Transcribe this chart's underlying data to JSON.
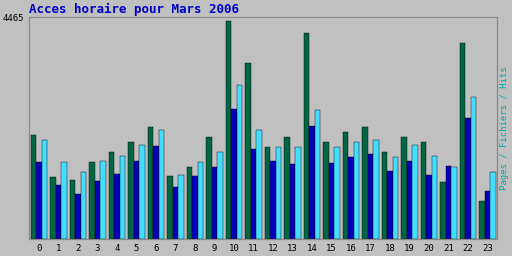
{
  "title": "Acces horaire pour Mars 2006",
  "ylabel": "Pages / Fichiers / Hits",
  "xlabel_ticks": [
    0,
    1,
    2,
    3,
    4,
    5,
    6,
    7,
    8,
    9,
    10,
    11,
    12,
    13,
    14,
    15,
    16,
    17,
    18,
    19,
    20,
    21,
    22,
    23
  ],
  "ymax": 4465,
  "ytick_label": "4465",
  "colors": {
    "green": "#006644",
    "blue": "#0000BB",
    "cyan": "#44DDFF"
  },
  "background_color": "#C0C0C0",
  "title_color": "#0000CC",
  "ylabel_color": "#00AAAA",
  "pages": [
    2100,
    1250,
    1200,
    1550,
    1750,
    1950,
    2250,
    1280,
    1450,
    2050,
    4380,
    3550,
    1850,
    2050,
    4150,
    1950,
    2150,
    2250,
    1750,
    2050,
    1950,
    1150,
    3950,
    780
  ],
  "fichiers": [
    1550,
    1100,
    920,
    1170,
    1320,
    1580,
    1870,
    1060,
    1270,
    1460,
    2620,
    1820,
    1570,
    1520,
    2270,
    1530,
    1650,
    1720,
    1380,
    1580,
    1290,
    1480,
    2430,
    980
  ],
  "hits": [
    2000,
    1550,
    1350,
    1580,
    1680,
    1900,
    2200,
    1300,
    1560,
    1750,
    3100,
    2200,
    1850,
    1850,
    2600,
    1850,
    1960,
    2000,
    1650,
    1900,
    1680,
    1450,
    2850,
    1350
  ]
}
